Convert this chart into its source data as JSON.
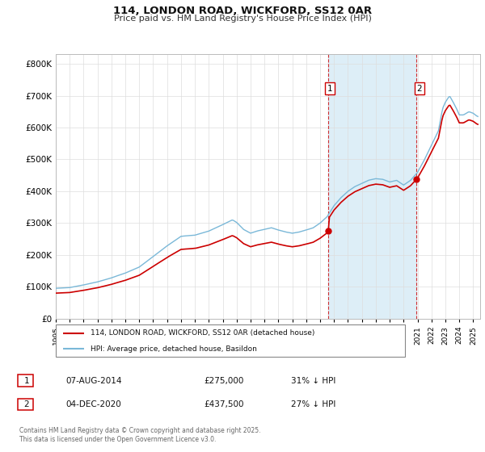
{
  "title": "114, LONDON ROAD, WICKFORD, SS12 0AR",
  "subtitle": "Price paid vs. HM Land Registry's House Price Index (HPI)",
  "hpi_color": "#7ab8d8",
  "hpi_fill_color": "#ddeef7",
  "price_color": "#cc0000",
  "vline_color": "#cc0000",
  "background_color": "#ffffff",
  "grid_color": "#dddddd",
  "ylim": [
    0,
    830000
  ],
  "yticks": [
    0,
    100000,
    200000,
    300000,
    400000,
    500000,
    600000,
    700000,
    800000
  ],
  "transaction1_x": 2014.6,
  "transaction1_y": 275000,
  "transaction2_x": 2020.92,
  "transaction2_y": 437500,
  "annotation1": "1",
  "annotation2": "2",
  "legend_label_price": "114, LONDON ROAD, WICKFORD, SS12 0AR (detached house)",
  "legend_label_hpi": "HPI: Average price, detached house, Basildon",
  "footnote_row1": "Contains HM Land Registry data © Crown copyright and database right 2025.",
  "footnote_row2": "This data is licensed under the Open Government Licence v3.0.",
  "table_row1_num": "1",
  "table_row1_date": "07-AUG-2014",
  "table_row1_price": "£275,000",
  "table_row1_hpi": "31% ↓ HPI",
  "table_row2_num": "2",
  "table_row2_date": "04-DEC-2020",
  "table_row2_price": "£437,500",
  "table_row2_hpi": "27% ↓ HPI",
  "xlim_left": 1995.0,
  "xlim_right": 2025.5
}
